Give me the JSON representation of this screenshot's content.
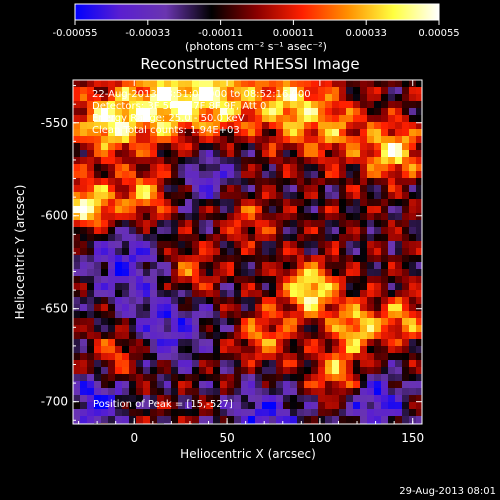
{
  "chart_data": {
    "type": "heatmap",
    "title": "Reconstructed RHESSI Image",
    "xlabel": "Heliocentric X (arcsec)",
    "ylabel": "Heliocentric Y (arcsec)",
    "xlim": [
      -33,
      155
    ],
    "ylim": [
      -712,
      -527
    ],
    "x_ticks": [
      0,
      50,
      100,
      150
    ],
    "y_ticks": [
      -550,
      -600,
      -650,
      -700
    ],
    "colorbar": {
      "label": "(photons cm⁻² s⁻¹ asec⁻²)",
      "range": [
        -0.00055,
        0.00055
      ],
      "tick_values": [
        -0.00055,
        -0.00033,
        -0.00011,
        0.00011,
        0.00033,
        0.00055
      ],
      "tick_labels": [
        "-0.00055",
        "-0.00033",
        "-0.00011",
        "0.00011",
        "0.00033",
        "0.00055"
      ],
      "colors": [
        "#0000ff",
        "#5a1fd0",
        "#6a35b0",
        "#000000",
        "#8b0000",
        "#ff2000",
        "#ff9000",
        "#ffff40",
        "#ffffff"
      ]
    },
    "info_lines": [
      "22-Aug-2013 08:51:08.000 to 08:52:16.000",
      "Detectors: 3F 5F 6F 7F 8F 9F, Att 0",
      "Energy Range: 25.0 - 50.0 keV",
      "Clean   Total counts: 1.94E+03"
    ],
    "peak_label": "Position of Peak = [15,-527]",
    "timestamp": "29-Aug-2013 08:01",
    "blobs": [
      {
        "x": 15,
        "y": -540,
        "v": 1.0,
        "s": 14
      },
      {
        "x": -15,
        "y": -550,
        "v": 0.9,
        "s": 12
      },
      {
        "x": 45,
        "y": -535,
        "v": 0.85,
        "s": 14
      },
      {
        "x": 85,
        "y": -540,
        "v": 0.8,
        "s": 14
      },
      {
        "x": -25,
        "y": -595,
        "v": 1.0,
        "s": 10
      },
      {
        "x": 5,
        "y": -590,
        "v": 0.7,
        "s": 10
      },
      {
        "x": 140,
        "y": -565,
        "v": 0.9,
        "s": 10
      },
      {
        "x": 110,
        "y": -555,
        "v": 0.5,
        "s": 12
      },
      {
        "x": 95,
        "y": -640,
        "v": 1.0,
        "s": 10
      },
      {
        "x": 120,
        "y": -660,
        "v": 0.8,
        "s": 9
      },
      {
        "x": 70,
        "y": -665,
        "v": 0.6,
        "s": 10
      },
      {
        "x": 110,
        "y": -685,
        "v": 0.7,
        "s": 10
      },
      {
        "x": 145,
        "y": -655,
        "v": 0.6,
        "s": 9
      },
      {
        "x": 30,
        "y": -630,
        "v": 0.5,
        "s": 10
      },
      {
        "x": -10,
        "y": -675,
        "v": 0.45,
        "s": 9
      },
      {
        "x": 60,
        "y": -600,
        "v": 0.4,
        "s": 10
      },
      {
        "x": 20,
        "y": -660,
        "v": -0.6,
        "s": 14
      },
      {
        "x": -5,
        "y": -625,
        "v": -0.6,
        "s": 16
      },
      {
        "x": 70,
        "y": -710,
        "v": -0.7,
        "s": 14
      },
      {
        "x": 40,
        "y": -580,
        "v": -0.5,
        "s": 12
      },
      {
        "x": 130,
        "y": -700,
        "v": -0.7,
        "s": 12
      },
      {
        "x": -20,
        "y": -700,
        "v": -0.8,
        "s": 10
      }
    ]
  }
}
